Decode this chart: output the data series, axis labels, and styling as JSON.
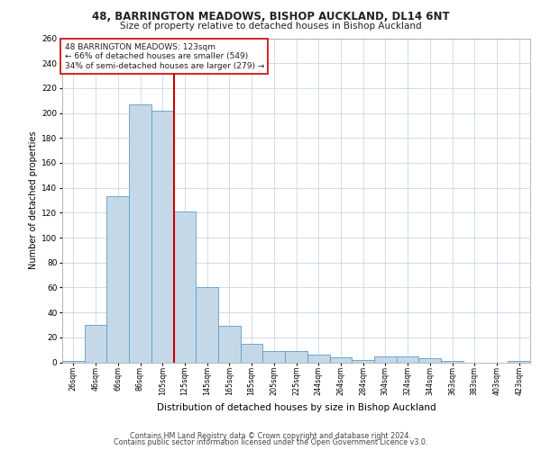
{
  "title_line1": "48, BARRINGTON MEADOWS, BISHOP AUCKLAND, DL14 6NT",
  "title_line2": "Size of property relative to detached houses in Bishop Auckland",
  "xlabel": "Distribution of detached houses by size in Bishop Auckland",
  "ylabel": "Number of detached properties",
  "annotation_line1": "48 BARRINGTON MEADOWS: 123sqm",
  "annotation_line2": "← 66% of detached houses are smaller (549)",
  "annotation_line3": "34% of semi-detached houses are larger (279) →",
  "bar_labels": [
    "26sqm",
    "46sqm",
    "66sqm",
    "86sqm",
    "105sqm",
    "125sqm",
    "145sqm",
    "165sqm",
    "185sqm",
    "205sqm",
    "225sqm",
    "244sqm",
    "264sqm",
    "284sqm",
    "304sqm",
    "324sqm",
    "344sqm",
    "363sqm",
    "383sqm",
    "403sqm",
    "423sqm"
  ],
  "bar_values": [
    1,
    30,
    133,
    207,
    202,
    121,
    60,
    29,
    15,
    9,
    9,
    6,
    4,
    2,
    5,
    5,
    3,
    1,
    0,
    0,
    1
  ],
  "bar_color": "#c5d8e8",
  "bar_edge_color": "#5a9ec9",
  "vline_color": "#cc0000",
  "ylim": [
    0,
    260
  ],
  "yticks": [
    0,
    20,
    40,
    60,
    80,
    100,
    120,
    140,
    160,
    180,
    200,
    220,
    240,
    260
  ],
  "grid_color": "#c8d8e8",
  "background_color": "#ffffff",
  "footer_line1": "Contains HM Land Registry data © Crown copyright and database right 2024.",
  "footer_line2": "Contains public sector information licensed under the Open Government Licence v3.0."
}
